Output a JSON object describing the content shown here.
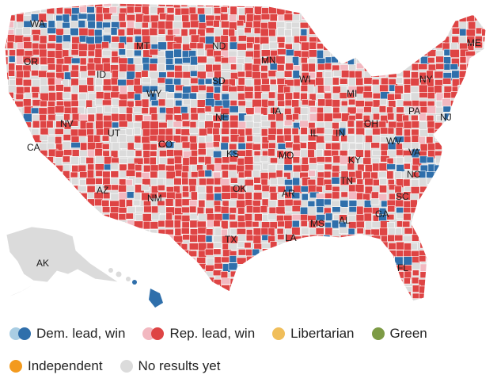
{
  "colors": {
    "rep": "#de4444",
    "rep_light": "#f2b8c0",
    "dem": "#2f6fab",
    "dem_light": "#a9cde3",
    "libertarian": "#f0be5a",
    "green": "#7d9b45",
    "independent": "#f39a1e",
    "no_results": "#dbdbdb",
    "border": "#ffffff"
  },
  "state_labels": [
    "WA",
    "OR",
    "CA",
    "ID",
    "NV",
    "MT",
    "WY",
    "UT",
    "AZ",
    "CO",
    "NM",
    "ND",
    "SD",
    "NE",
    "KS",
    "OK",
    "TX",
    "MN",
    "IA",
    "MO",
    "AR",
    "LA",
    "WI",
    "IL",
    "MI",
    "IN",
    "OH",
    "KY",
    "TN",
    "MS",
    "AL",
    "GA",
    "FL",
    "SC",
    "NC",
    "VA",
    "WV",
    "PA",
    "NY",
    "ME",
    "NJ",
    "AK"
  ],
  "legend": {
    "dem": "Dem. lead, win",
    "rep": "Rep. lead, win",
    "libertarian": "Libertarian",
    "green": "Green",
    "independent": "Independent",
    "no_results": "No results yet"
  }
}
